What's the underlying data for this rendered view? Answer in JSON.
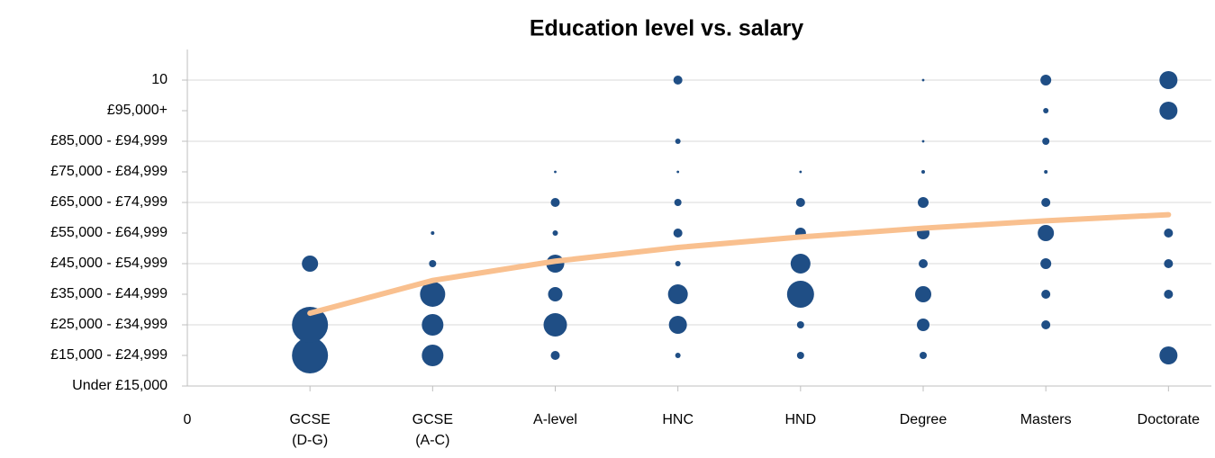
{
  "chart_data": {
    "type": "bubble",
    "title": "Education level vs. salary",
    "xlim": [
      0,
      8.35
    ],
    "ylim": [
      0,
      11
    ],
    "xticks": [
      0,
      {
        "value": 1,
        "label": "GCSE (D-G)"
      },
      {
        "value": 2,
        "label": "GCSE (A-C)"
      },
      {
        "value": 3,
        "label": "A-level"
      },
      {
        "value": 4,
        "label": "HNC"
      },
      {
        "value": 5,
        "label": "HND"
      },
      {
        "value": 6,
        "label": "Degree"
      },
      {
        "value": 7,
        "label": "Masters"
      },
      {
        "value": 8,
        "label": "Doctorate"
      }
    ],
    "yticks": [
      {
        "value": 0,
        "label": "Under £15,000"
      },
      {
        "value": 1,
        "label": "£15,000 - £24,999"
      },
      {
        "value": 2,
        "label": "£25,000 - £34,999"
      },
      {
        "value": 3,
        "label": "£35,000 - £44,999"
      },
      {
        "value": 4,
        "label": "£45,000 - £54,999"
      },
      {
        "value": 5,
        "label": "£55,000 - £64,999"
      },
      {
        "value": 6,
        "label": "£65,000 - £74,999"
      },
      {
        "value": 7,
        "label": "£75,000 - £84,999"
      },
      {
        "value": 8,
        "label": "£85,000 - £94,999"
      },
      {
        "value": 9,
        "label": "£95,000+"
      },
      10
    ],
    "grid": true,
    "series": [
      {
        "color": "#1f4e85",
        "x": [
          1,
          1,
          1,
          2,
          2,
          2,
          2,
          2,
          3,
          3,
          3,
          3,
          3,
          3,
          3,
          4,
          4,
          4,
          4,
          4,
          4,
          4,
          4,
          4,
          5,
          5,
          5,
          5,
          5,
          5,
          5,
          6,
          6,
          6,
          6,
          6,
          6,
          6,
          6,
          6,
          7,
          7,
          7,
          7,
          7,
          7,
          7,
          7,
          7,
          8,
          8,
          8,
          8,
          8,
          8
        ],
        "values": [
          1,
          2,
          4,
          1,
          2,
          3,
          4,
          5,
          1,
          2,
          3,
          4,
          5,
          6,
          7,
          1,
          2,
          3,
          4,
          5,
          6,
          7,
          8,
          10,
          1,
          2,
          3,
          4,
          5,
          6,
          7,
          1,
          2,
          3,
          4,
          5,
          6,
          7,
          8,
          10,
          2,
          3,
          4,
          5,
          6,
          7,
          8,
          9,
          10,
          1,
          3,
          4,
          5,
          9,
          10
        ],
        "size": [
          400,
          400,
          81,
          144,
          144,
          196,
          16,
          4,
          25,
          169,
          64,
          100,
          9,
          25,
          2,
          9,
          100,
          121,
          9,
          25,
          16,
          2,
          9,
          25,
          16,
          16,
          225,
          121,
          36,
          25,
          2,
          16,
          49,
          81,
          25,
          49,
          36,
          4,
          2,
          2,
          25,
          25,
          36,
          81,
          25,
          4,
          16,
          9,
          36,
          100,
          25,
          25,
          25,
          100,
          100
        ]
      }
    ],
    "trendline": {
      "color": "#f9c08f",
      "x": [
        1,
        2,
        3,
        4,
        5,
        6,
        7,
        8
      ],
      "values": [
        2.38,
        3.45,
        4.08,
        4.53,
        4.87,
        5.16,
        5.4,
        5.6
      ]
    }
  }
}
